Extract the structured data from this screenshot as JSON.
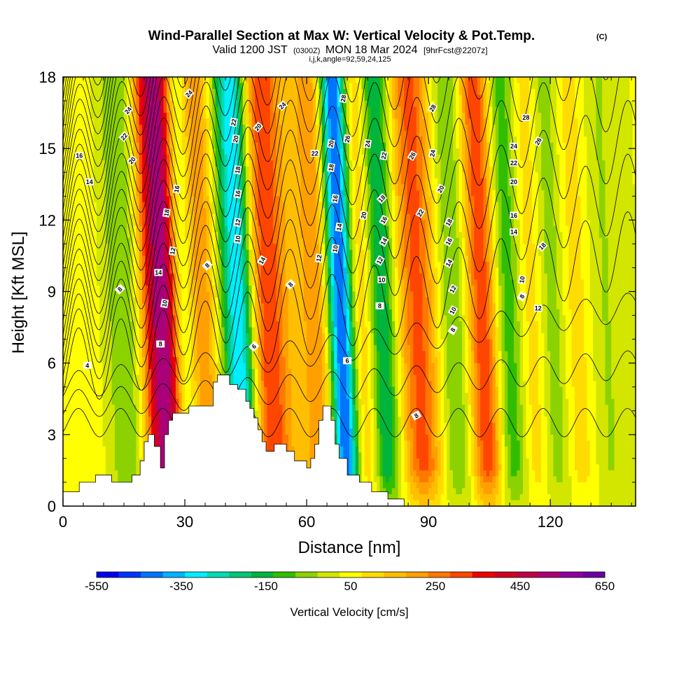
{
  "chart_data": {
    "type": "heatmap",
    "title": "Wind-Parallel Section at Max W: Vertical Velocity & Pot.Temp.",
    "title_mark": "(C)",
    "subtitle_main_a": "Valid 1200 JST",
    "subtitle_zulu": "(0300Z)",
    "subtitle_main_b": "MON 18 Mar 2024",
    "subtitle_fcst": "[9hrFcst@2207z]",
    "subtitle2": "i,j,k,angle=92,59,24,125",
    "xlabel": "Distance [nm]",
    "ylabel": "Height [Kft MSL]",
    "xlim": [
      0,
      141
    ],
    "ylim": [
      0,
      18
    ],
    "x_ticks": [
      0,
      30,
      60,
      90,
      120
    ],
    "x_tick_labels": [
      "0",
      "30",
      "60",
      "90",
      "120"
    ],
    "y_ticks": [
      0,
      3,
      6,
      9,
      12,
      15,
      18
    ],
    "y_tick_labels": [
      "0",
      "3",
      "6",
      "9",
      "12",
      "15",
      "18"
    ],
    "colorbar": {
      "label": "Vertical Velocity [cm/s]",
      "min": -550,
      "max": 650,
      "tick_labels": [
        "-550",
        "-350",
        "-150",
        "50",
        "250",
        "450",
        "650"
      ],
      "colors": [
        "#0000ee",
        "#0034ff",
        "#0074ff",
        "#00b4ff",
        "#00eeff",
        "#00dcb4",
        "#00c878",
        "#00b43c",
        "#32be00",
        "#8cd200",
        "#d2e600",
        "#ffff00",
        "#ffdc00",
        "#ffbe00",
        "#ffa000",
        "#ff7800",
        "#ff4600",
        "#ee0000",
        "#d20023",
        "#be0046",
        "#aa0078",
        "#8c00a0",
        "#6e00a0"
      ]
    },
    "velocity_bands": [
      {
        "x": 5,
        "w": 5,
        "amp": 40
      },
      {
        "x": 13.5,
        "w": 3,
        "amp": -60
      },
      {
        "x": 17.5,
        "w": 3,
        "amp": -60
      },
      {
        "x": 22,
        "w": 2.2,
        "amp": 230
      },
      {
        "x": 26,
        "w": 2.6,
        "amp": 480
      },
      {
        "x": 29.5,
        "w": 2.2,
        "amp": -130
      },
      {
        "x": 35,
        "w": 2.5,
        "amp": 200
      },
      {
        "x": 44,
        "w": 2.8,
        "amp": -400
      },
      {
        "x": 51,
        "w": 3.5,
        "amp": 320
      },
      {
        "x": 59,
        "w": 3,
        "amp": 60
      },
      {
        "x": 64,
        "w": 3,
        "amp": 200
      },
      {
        "x": 69,
        "w": 2.4,
        "amp": -560
      },
      {
        "x": 74,
        "w": 3,
        "amp": 160
      },
      {
        "x": 79,
        "w": 2.5,
        "amp": -250
      },
      {
        "x": 88,
        "w": 3.5,
        "amp": 280
      },
      {
        "x": 97,
        "w": 3,
        "amp": -130
      },
      {
        "x": 104,
        "w": 3,
        "amp": 320
      },
      {
        "x": 110,
        "w": 2.8,
        "amp": -180
      },
      {
        "x": 116,
        "w": 3,
        "amp": 100
      },
      {
        "x": 121,
        "w": 2.5,
        "amp": -110
      },
      {
        "x": 127,
        "w": 3,
        "amp": 80
      },
      {
        "x": 134,
        "w": 3,
        "amp": -60
      }
    ],
    "terrain": [
      [
        0,
        0.6
      ],
      [
        4,
        0.6
      ],
      [
        4,
        1
      ],
      [
        8,
        1
      ],
      [
        8,
        1.3
      ],
      [
        12,
        1.3
      ],
      [
        12,
        1
      ],
      [
        17,
        1
      ],
      [
        17,
        1.3
      ],
      [
        19,
        1.3
      ],
      [
        19,
        1.9
      ],
      [
        20,
        1.9
      ],
      [
        20,
        2.7
      ],
      [
        21,
        2.7
      ],
      [
        21,
        3
      ],
      [
        22.5,
        3
      ],
      [
        22.5,
        2.5
      ],
      [
        24,
        2.5
      ],
      [
        24,
        1.6
      ],
      [
        25,
        1.6
      ],
      [
        25,
        3
      ],
      [
        26,
        3
      ],
      [
        26,
        3.6
      ],
      [
        27,
        3.6
      ],
      [
        27,
        3.9
      ],
      [
        31,
        3.9
      ],
      [
        31,
        4.2
      ],
      [
        37,
        4.2
      ],
      [
        37,
        5.2
      ],
      [
        38,
        5.2
      ],
      [
        38,
        5.5
      ],
      [
        41,
        5.5
      ],
      [
        41,
        5.1
      ],
      [
        43,
        5.1
      ],
      [
        43,
        4.9
      ],
      [
        45,
        4.9
      ],
      [
        45,
        4.4
      ],
      [
        46,
        4.4
      ],
      [
        46,
        4.1
      ],
      [
        47,
        4.1
      ],
      [
        47,
        3.7
      ],
      [
        48,
        3.7
      ],
      [
        48,
        3.2
      ],
      [
        49,
        3.2
      ],
      [
        49,
        2.7
      ],
      [
        50,
        2.7
      ],
      [
        50,
        2.3
      ],
      [
        52,
        2.3
      ],
      [
        52,
        2.6
      ],
      [
        55,
        2.6
      ],
      [
        55,
        2.3
      ],
      [
        57,
        2.3
      ],
      [
        57,
        1.9
      ],
      [
        60,
        1.9
      ],
      [
        60,
        1.6
      ],
      [
        61,
        1.6
      ],
      [
        61,
        2
      ],
      [
        62,
        2
      ],
      [
        62,
        2.6
      ],
      [
        63,
        2.6
      ],
      [
        63,
        3.6
      ],
      [
        64,
        3.6
      ],
      [
        64,
        4.2
      ],
      [
        66,
        4.2
      ],
      [
        66,
        3.6
      ],
      [
        67,
        3.6
      ],
      [
        67,
        2.6
      ],
      [
        68,
        2.6
      ],
      [
        68,
        2
      ],
      [
        70,
        2
      ],
      [
        70,
        1.3
      ],
      [
        73,
        1.3
      ],
      [
        73,
        1
      ],
      [
        76,
        1
      ],
      [
        76,
        0.6
      ],
      [
        80,
        0.6
      ],
      [
        80,
        0.3
      ],
      [
        84,
        0.3
      ],
      [
        84,
        0
      ],
      [
        141,
        0
      ]
    ],
    "theta_levels": [
      4,
      6,
      8,
      10,
      12,
      14,
      16,
      18,
      20,
      22,
      24,
      26,
      28
    ],
    "theta_labels": [
      {
        "t": "24",
        "x": 16,
        "y": 16.6,
        "a": -50
      },
      {
        "t": "22",
        "x": 15,
        "y": 15.5,
        "a": -50
      },
      {
        "t": "20",
        "x": 17,
        "y": 14.5,
        "a": -50
      },
      {
        "t": "16",
        "x": 4,
        "y": 14.7,
        "a": 0
      },
      {
        "t": "14",
        "x": 6.5,
        "y": 13.6,
        "a": 0
      },
      {
        "t": "24",
        "x": 31,
        "y": 17.3,
        "a": -45
      },
      {
        "t": "16",
        "x": 28,
        "y": 13.3,
        "a": -80
      },
      {
        "t": "18",
        "x": 25.5,
        "y": 12.3,
        "a": -80
      },
      {
        "t": "12",
        "x": 27,
        "y": 10.7,
        "a": -80
      },
      {
        "t": "14",
        "x": 23.5,
        "y": 9.8,
        "a": 0
      },
      {
        "t": "10",
        "x": 25,
        "y": 8.5,
        "a": -80
      },
      {
        "t": "8",
        "x": 24,
        "y": 6.8,
        "a": 0
      },
      {
        "t": "8",
        "x": 14,
        "y": 9.1,
        "a": -45
      },
      {
        "t": "4",
        "x": 6,
        "y": 5.9,
        "a": 0
      },
      {
        "t": "22",
        "x": 42,
        "y": 16.1,
        "a": -80
      },
      {
        "t": "20",
        "x": 42.5,
        "y": 15.4,
        "a": -80
      },
      {
        "t": "20",
        "x": 48,
        "y": 15.9,
        "a": -50
      },
      {
        "t": "24",
        "x": 54,
        "y": 16.8,
        "a": -45
      },
      {
        "t": "18",
        "x": 43,
        "y": 14.1,
        "a": -80
      },
      {
        "t": "16",
        "x": 43,
        "y": 13.1,
        "a": -80
      },
      {
        "t": "12",
        "x": 43,
        "y": 11.9,
        "a": -80
      },
      {
        "t": "10",
        "x": 43,
        "y": 11.2,
        "a": -80
      },
      {
        "t": "14",
        "x": 49,
        "y": 10.3,
        "a": -60
      },
      {
        "t": "8",
        "x": 35.5,
        "y": 10.1,
        "a": -45
      },
      {
        "t": "8",
        "x": 56,
        "y": 9.3,
        "a": -45
      },
      {
        "t": "6",
        "x": 47,
        "y": 6.7,
        "a": -45
      },
      {
        "t": "22",
        "x": 62,
        "y": 14.8,
        "a": 0
      },
      {
        "t": "20",
        "x": 66,
        "y": 15.2,
        "a": -80
      },
      {
        "t": "18",
        "x": 66,
        "y": 14.2,
        "a": -80
      },
      {
        "t": "28",
        "x": 69,
        "y": 17.1,
        "a": -80
      },
      {
        "t": "26",
        "x": 70,
        "y": 15.4,
        "a": -80
      },
      {
        "t": "24",
        "x": 75,
        "y": 15.2,
        "a": -80
      },
      {
        "t": "16",
        "x": 67,
        "y": 12.9,
        "a": -80
      },
      {
        "t": "14",
        "x": 68,
        "y": 11.7,
        "a": -80
      },
      {
        "t": "12",
        "x": 63,
        "y": 10.4,
        "a": -80
      },
      {
        "t": "10",
        "x": 67,
        "y": 10.8,
        "a": -80
      },
      {
        "t": "20",
        "x": 74,
        "y": 12.2,
        "a": -80
      },
      {
        "t": "22",
        "x": 79,
        "y": 14.7,
        "a": -80
      },
      {
        "t": "26",
        "x": 86,
        "y": 14.7,
        "a": -60
      },
      {
        "t": "18",
        "x": 78.5,
        "y": 12.9,
        "a": -45
      },
      {
        "t": "16",
        "x": 79,
        "y": 12.0,
        "a": -60
      },
      {
        "t": "14",
        "x": 79,
        "y": 11.1,
        "a": -60
      },
      {
        "t": "12",
        "x": 78,
        "y": 10.3,
        "a": -60
      },
      {
        "t": "10",
        "x": 78.5,
        "y": 9.5,
        "a": 0
      },
      {
        "t": "8",
        "x": 78,
        "y": 8.4,
        "a": 0
      },
      {
        "t": "6",
        "x": 70,
        "y": 6.1,
        "a": 0
      },
      {
        "t": "8",
        "x": 87,
        "y": 3.8,
        "a": -30
      },
      {
        "t": "28",
        "x": 91,
        "y": 16.7,
        "a": -60
      },
      {
        "t": "24",
        "x": 91,
        "y": 14.8,
        "a": -80
      },
      {
        "t": "22",
        "x": 88,
        "y": 12.3,
        "a": -60
      },
      {
        "t": "20",
        "x": 93,
        "y": 13.3,
        "a": -60
      },
      {
        "t": "18",
        "x": 95,
        "y": 11.9,
        "a": -60
      },
      {
        "t": "16",
        "x": 95,
        "y": 11.1,
        "a": -60
      },
      {
        "t": "14",
        "x": 95,
        "y": 10.2,
        "a": -60
      },
      {
        "t": "12",
        "x": 96,
        "y": 9.1,
        "a": -60
      },
      {
        "t": "10",
        "x": 96,
        "y": 8.2,
        "a": -60
      },
      {
        "t": "8",
        "x": 96,
        "y": 7.4,
        "a": -60
      },
      {
        "t": "28",
        "x": 114,
        "y": 16.3,
        "a": 0
      },
      {
        "t": "26",
        "x": 117,
        "y": 15.3,
        "a": -60
      },
      {
        "t": "24",
        "x": 111,
        "y": 15.1,
        "a": 0
      },
      {
        "t": "22",
        "x": 111,
        "y": 14.4,
        "a": 0
      },
      {
        "t": "20",
        "x": 111,
        "y": 13.6,
        "a": 0
      },
      {
        "t": "16",
        "x": 111,
        "y": 12.2,
        "a": 0
      },
      {
        "t": "14",
        "x": 111,
        "y": 11.5,
        "a": 0
      },
      {
        "t": "18",
        "x": 118,
        "y": 10.9,
        "a": -45
      },
      {
        "t": "10",
        "x": 113,
        "y": 9.5,
        "a": -80
      },
      {
        "t": "8",
        "x": 113,
        "y": 8.8,
        "a": -60
      },
      {
        "t": "12",
        "x": 117,
        "y": 8.3,
        "a": 0
      }
    ]
  }
}
